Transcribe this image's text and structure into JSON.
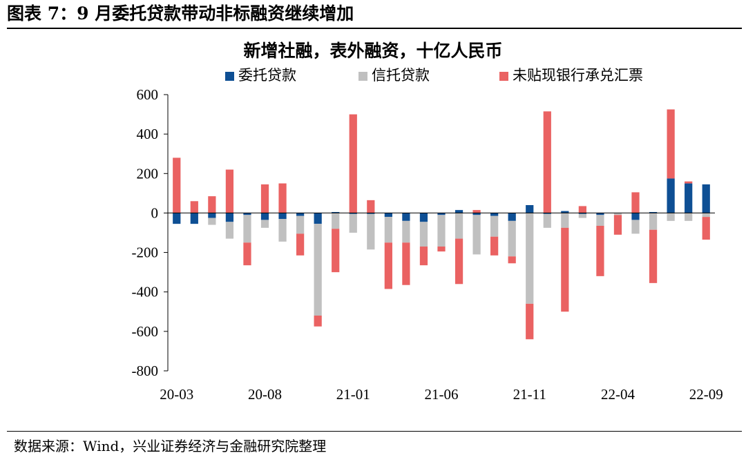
{
  "figure_header": "图表 7：9 月委托贷款带动非标融资继续增加",
  "source_note": "数据来源：Wind，兴业证券经济与金融研究院整理",
  "chart_data": {
    "type": "bar",
    "stacked": true,
    "title": "新增社融，表外融资，十亿人民币",
    "xlabel": "",
    "ylabel": "",
    "ylim": [
      -800,
      600
    ],
    "yticks": [
      600,
      400,
      200,
      0,
      -200,
      -400,
      -600,
      -800
    ],
    "ytick_labels": [
      "600",
      "400",
      "200",
      "0",
      "-200",
      "-400",
      "-600",
      "-800"
    ],
    "grid": false,
    "legend_position": "top",
    "categories": [
      "20-03",
      "20-04",
      "20-05",
      "20-06",
      "20-07",
      "20-08",
      "20-09",
      "20-10",
      "20-11",
      "20-12",
      "21-01",
      "21-02",
      "21-03",
      "21-04",
      "21-05",
      "21-06",
      "21-07",
      "21-08",
      "21-09",
      "21-10",
      "21-11",
      "21-12",
      "22-01",
      "22-02",
      "22-03",
      "22-04",
      "22-05",
      "22-06",
      "22-07",
      "22-08",
      "22-09"
    ],
    "tick_labels": [
      {
        "index": 0,
        "label": "20-03"
      },
      {
        "index": 5,
        "label": "20-08"
      },
      {
        "index": 10,
        "label": "21-01"
      },
      {
        "index": 15,
        "label": "21-06"
      },
      {
        "index": 20,
        "label": "21-11"
      },
      {
        "index": 25,
        "label": "22-04"
      },
      {
        "index": 30,
        "label": "22-09"
      }
    ],
    "series": [
      {
        "name": "委托贷款",
        "color": "#0e4f94",
        "values": [
          -55,
          -55,
          -25,
          -45,
          -10,
          -35,
          -30,
          -15,
          -55,
          5,
          -5,
          -5,
          -20,
          -40,
          -45,
          -10,
          15,
          -10,
          -15,
          -40,
          40,
          -5,
          10,
          -5,
          -10,
          0,
          -35,
          5,
          175,
          150,
          145
        ]
      },
      {
        "name": "信托贷款",
        "color": "#c0c0c0",
        "values": [
          0,
          0,
          -35,
          -85,
          -140,
          -40,
          -115,
          -90,
          -465,
          -80,
          -95,
          -180,
          -130,
          -110,
          -125,
          -160,
          -130,
          -200,
          -105,
          -180,
          -460,
          -70,
          -75,
          -20,
          -55,
          -10,
          -70,
          -85,
          -40,
          -40,
          -20
        ]
      },
      {
        "name": "未贴现银行承兑汇票",
        "color": "#ea6262",
        "values": [
          280,
          60,
          85,
          220,
          -115,
          145,
          150,
          -110,
          -55,
          -220,
          500,
          65,
          -235,
          -215,
          -95,
          -25,
          -230,
          15,
          -95,
          -35,
          -180,
          515,
          -425,
          35,
          -255,
          -100,
          105,
          -270,
          350,
          10,
          -115
        ]
      }
    ]
  }
}
